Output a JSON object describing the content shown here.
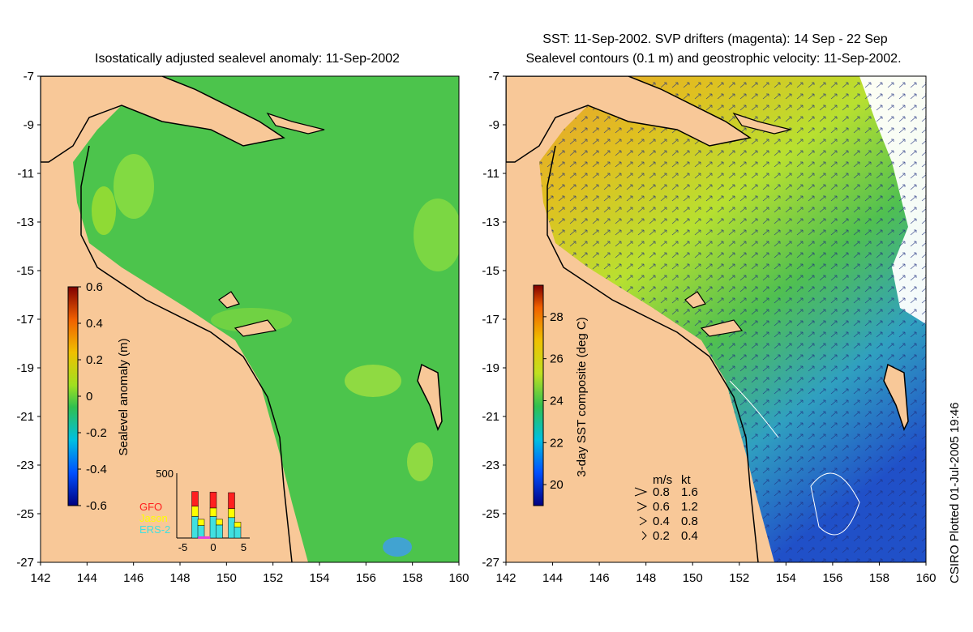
{
  "left_panel": {
    "title": "Isostatically adjusted sealevel anomaly: 11-Sep-2002",
    "colorbar": {
      "label": "Sealevel anomaly (m)",
      "ticks": [
        "0.6",
        "0.4",
        "0.2",
        "0",
        "-0.2",
        "-0.4",
        "-0.6"
      ],
      "range": [
        -0.6,
        0.6
      ]
    },
    "histogram": {
      "ymax_label": "500",
      "x_ticks": [
        "-5",
        "0",
        "5"
      ],
      "missions": [
        {
          "name": "GFO",
          "color": "#ff2020"
        },
        {
          "name": "Jason",
          "color": "#ffff00"
        },
        {
          "name": "ERS-2",
          "color": "#40e0e0"
        }
      ],
      "bins": [
        -4,
        -3,
        -2,
        -1,
        0,
        1,
        2,
        3,
        4
      ],
      "ers2": [
        0,
        190,
        110,
        0,
        190,
        115,
        0,
        180,
        95
      ],
      "jason": [
        0,
        90,
        55,
        0,
        75,
        50,
        0,
        80,
        45
      ],
      "gfo": [
        0,
        130,
        0,
        0,
        140,
        0,
        0,
        140,
        0
      ]
    }
  },
  "right_panel": {
    "title_line1": "SST: 11-Sep-2002. SVP drifters (magenta): 14 Sep - 22 Sep",
    "title_line2": "Sealevel contours (0.1 m) and geostrophic velocity: 11-Sep-2002.",
    "colorbar": {
      "label": "3-day SST composite (deg C)",
      "ticks": [
        "28",
        "26",
        "24",
        "22",
        "20"
      ],
      "range": [
        19,
        29.5
      ]
    },
    "velocity_legend": {
      "header_ms": "m/s",
      "header_kt": "kt",
      "rows": [
        {
          "ms": "0.8",
          "kt": "1.6"
        },
        {
          "ms": "0.6",
          "kt": "1.2"
        },
        {
          "ms": "0.4",
          "kt": "0.8"
        },
        {
          "ms": "0.2",
          "kt": "0.4"
        }
      ]
    }
  },
  "axes": {
    "y_ticks": [
      "-7",
      "-9",
      "-11",
      "-13",
      "-15",
      "-17",
      "-19",
      "-21",
      "-23",
      "-25",
      "-27"
    ],
    "x_ticks": [
      "142",
      "144",
      "146",
      "148",
      "150",
      "152",
      "154",
      "156",
      "158",
      "160"
    ]
  },
  "side_note": "CSIRO Plotted 01-Jul-2005 19:46",
  "colors": {
    "land": "#f8c898",
    "sea_left": "#4cc44c",
    "sea_right_warm": "#c8e030",
    "sea_right_cold": "#2060d0"
  }
}
